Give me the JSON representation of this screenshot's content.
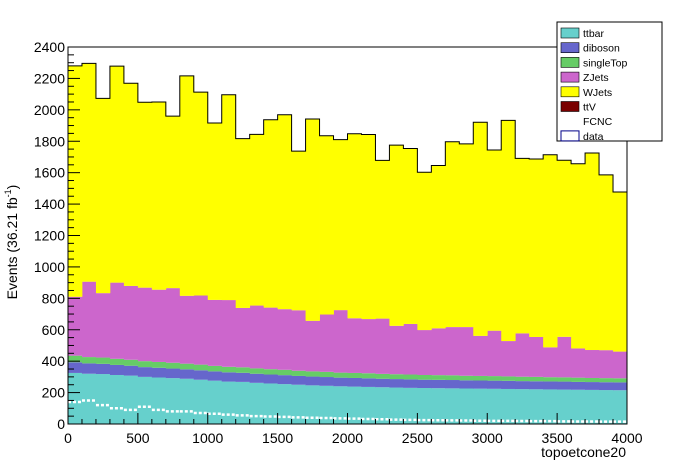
{
  "chart_data": {
    "type": "area",
    "stacked": true,
    "xlabel": "topoetcone20",
    "ylabel": "Events (36.21 fb",
    "ylabel_sup": "-1",
    "ylabel_close": ")",
    "xlim": [
      0,
      4000
    ],
    "ylim": [
      0,
      2400
    ],
    "x_ticks": [
      0,
      500,
      1000,
      1500,
      2000,
      2500,
      3000,
      3500,
      4000
    ],
    "y_ticks": [
      0,
      200,
      400,
      600,
      800,
      1000,
      1200,
      1400,
      1600,
      1800,
      2000,
      2200,
      2400
    ],
    "bin_width": 100,
    "legend_position": "top-right",
    "series": [
      {
        "name": "ttbar",
        "color": "#66d0cc",
        "values": [
          325,
          320,
          318,
          312,
          308,
          300,
          296,
          292,
          288,
          282,
          276,
          270,
          268,
          262,
          258,
          254,
          250,
          246,
          243,
          240,
          238,
          236,
          234,
          232,
          230,
          229,
          228,
          227,
          226,
          225,
          224,
          223,
          222,
          221,
          220,
          219,
          218,
          217,
          216,
          215
        ]
      },
      {
        "name": "diboson",
        "color": "#6666cc",
        "values": [
          68,
          66,
          65,
          64,
          63,
          62,
          62,
          61,
          60,
          60,
          59,
          59,
          58,
          58,
          57,
          57,
          56,
          56,
          56,
          55,
          55,
          55,
          54,
          54,
          54,
          53,
          53,
          53,
          52,
          52,
          52,
          52,
          51,
          51,
          51,
          51,
          50,
          50,
          50,
          50
        ]
      },
      {
        "name": "singleTop",
        "color": "#66cc66",
        "values": [
          42,
          40,
          40,
          39,
          38,
          38,
          37,
          37,
          36,
          36,
          35,
          35,
          35,
          34,
          34,
          34,
          33,
          33,
          33,
          32,
          32,
          32,
          31,
          31,
          31,
          30,
          30,
          30,
          29,
          29,
          29,
          28,
          28,
          28,
          27,
          27,
          27,
          26,
          26,
          26
        ]
      },
      {
        "name": "ZJets",
        "color": "#cc66cc",
        "values": [
          375,
          480,
          410,
          485,
          470,
          468,
          460,
          475,
          432,
          440,
          420,
          425,
          378,
          400,
          392,
          386,
          385,
          322,
          365,
          398,
          348,
          345,
          352,
          308,
          322,
          286,
          298,
          307,
          310,
          255,
          289,
          225,
          276,
          254,
          190,
          258,
          186,
          178,
          178,
          170
        ]
      },
      {
        "name": "WJets",
        "color": "#ffff00",
        "values": [
          1470,
          1390,
          1240,
          1378,
          1290,
          1180,
          1195,
          1095,
          1400,
          1295,
          1126,
          1307,
          1078,
          1090,
          1196,
          1238,
          1013,
          1285,
          1138,
          1085,
          1175,
          1175,
          1007,
          1150,
          1117,
          1005,
          1037,
          1180,
          1166,
          1360,
          1150,
          1405,
          1114,
          1133,
          1226,
          1124,
          1176,
          1254,
          1116,
          1016
        ]
      },
      {
        "name": "ttV",
        "color": "#7a0000",
        "values": []
      },
      {
        "name": "FCNC",
        "color": "#ffffff",
        "values": []
      }
    ],
    "data": {
      "name": "data",
      "values": [
        140,
        150,
        120,
        100,
        90,
        110,
        90,
        80,
        80,
        70,
        65,
        60,
        55,
        50,
        48,
        45,
        42,
        40,
        38,
        36,
        34,
        32,
        30,
        28,
        26,
        25,
        24,
        23,
        22,
        21,
        20,
        20,
        19,
        18,
        18,
        17,
        16,
        16,
        15,
        15
      ]
    }
  }
}
